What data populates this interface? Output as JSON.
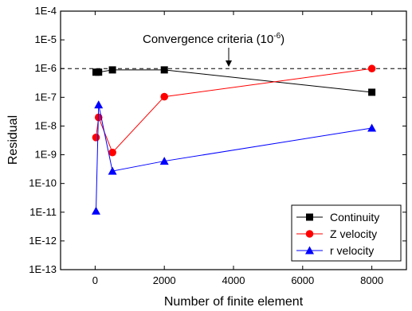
{
  "chart_data": {
    "type": "line",
    "xlabel": "Number of finite element",
    "ylabel": "Residual",
    "xlim": [
      -1000,
      9000
    ],
    "ylim_exp": [
      -13,
      -4
    ],
    "yscale": "log",
    "grid": false,
    "legend_position": "bottom-right",
    "x_ticks": [
      "0",
      "2000",
      "4000",
      "6000",
      "8000"
    ],
    "x_tick_values": [
      0,
      2000,
      4000,
      6000,
      8000
    ],
    "y_ticks": [
      "1E-13",
      "1E-12",
      "1E-11",
      "1E-10",
      "1E-9",
      "1E-8",
      "1E-7",
      "1E-6",
      "1E-5",
      "1E-4"
    ],
    "y_tick_exps": [
      -13,
      -12,
      -11,
      -10,
      -9,
      -8,
      -7,
      -6,
      -5,
      -4
    ],
    "annotation": {
      "text": "Convergence criteria (10",
      "superscript": "-6",
      "close": ")",
      "value": 1e-06
    },
    "series": [
      {
        "name": "Continuity",
        "color": "#000000",
        "marker": "square",
        "x": [
          25,
          100,
          500,
          2000,
          8000
        ],
        "y": [
          7.5e-07,
          7.5e-07,
          9e-07,
          9e-07,
          1.5e-07
        ]
      },
      {
        "name": "Z velocity",
        "color": "#ff0000",
        "marker": "circle",
        "x": [
          25,
          100,
          500,
          2000,
          8000
        ],
        "y": [
          4e-09,
          2e-08,
          1.2e-09,
          1.05e-07,
          1e-06
        ]
      },
      {
        "name": "r velocity",
        "color": "#0000ff",
        "marker": "triangle",
        "x": [
          25,
          100,
          500,
          2000,
          8000
        ],
        "y": [
          1.1e-11,
          5.5e-08,
          2.7e-10,
          6e-10,
          8.5e-09
        ]
      }
    ]
  }
}
